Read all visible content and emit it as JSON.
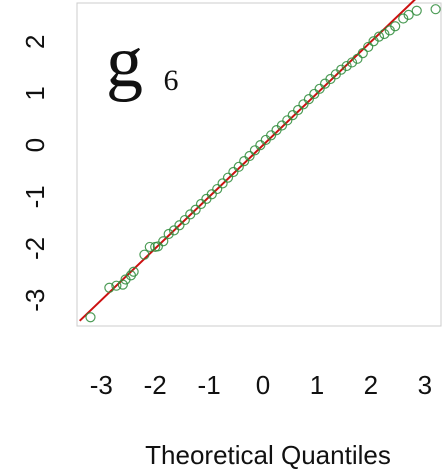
{
  "chart_data": {
    "type": "scatter",
    "panel_label": {
      "main": "g",
      "subscript": "6"
    },
    "xlabel": "Theoretical Quantiles",
    "ylabel": "",
    "xlim": [
      -3.45,
      3.3
    ],
    "ylim": [
      -3.5,
      2.75
    ],
    "x_ticks": [
      -3,
      -2,
      -1,
      0,
      1,
      2,
      3
    ],
    "x_tick_labels": [
      "-3",
      "-2",
      "-1",
      "0",
      "1",
      "2",
      "3"
    ],
    "y_ticks": [
      -3,
      -2,
      -1,
      0,
      1,
      2
    ],
    "y_tick_labels": [
      "-3",
      "-2",
      "-1",
      "0",
      "1",
      "2"
    ],
    "grid": false,
    "legend": "none",
    "colors": {
      "points": "#2e8b3a",
      "reference_line": "#cc1111",
      "frame": "#cccccc"
    },
    "reference_line": {
      "slope": 1.0,
      "intercept": 0.0
    },
    "series": [
      {
        "values": [
          {
            "x": -3.2,
            "y": -3.33
          },
          {
            "x": -2.85,
            "y": -2.76
          },
          {
            "x": -2.72,
            "y": -2.72
          },
          {
            "x": -2.6,
            "y": -2.7
          },
          {
            "x": -2.55,
            "y": -2.6
          },
          {
            "x": -2.45,
            "y": -2.52
          },
          {
            "x": -2.4,
            "y": -2.45
          },
          {
            "x": -2.2,
            "y": -2.12
          },
          {
            "x": -2.1,
            "y": -1.97
          },
          {
            "x": -2.0,
            "y": -1.97
          },
          {
            "x": -1.95,
            "y": -1.96
          },
          {
            "x": -1.85,
            "y": -1.86
          },
          {
            "x": -1.75,
            "y": -1.72
          },
          {
            "x": -1.65,
            "y": -1.65
          },
          {
            "x": -1.55,
            "y": -1.55
          },
          {
            "x": -1.45,
            "y": -1.45
          },
          {
            "x": -1.35,
            "y": -1.34
          },
          {
            "x": -1.25,
            "y": -1.25
          },
          {
            "x": -1.15,
            "y": -1.14
          },
          {
            "x": -1.05,
            "y": -1.04
          },
          {
            "x": -0.95,
            "y": -0.95
          },
          {
            "x": -0.85,
            "y": -0.85
          },
          {
            "x": -0.75,
            "y": -0.74
          },
          {
            "x": -0.65,
            "y": -0.63
          },
          {
            "x": -0.55,
            "y": -0.52
          },
          {
            "x": -0.45,
            "y": -0.42
          },
          {
            "x": -0.35,
            "y": -0.31
          },
          {
            "x": -0.25,
            "y": -0.21
          },
          {
            "x": -0.15,
            "y": -0.1
          },
          {
            "x": -0.05,
            "y": 0.0
          },
          {
            "x": 0.05,
            "y": 0.1
          },
          {
            "x": 0.15,
            "y": 0.19
          },
          {
            "x": 0.25,
            "y": 0.29
          },
          {
            "x": 0.35,
            "y": 0.38
          },
          {
            "x": 0.45,
            "y": 0.48
          },
          {
            "x": 0.55,
            "y": 0.58
          },
          {
            "x": 0.65,
            "y": 0.68
          },
          {
            "x": 0.75,
            "y": 0.79
          },
          {
            "x": 0.85,
            "y": 0.89
          },
          {
            "x": 0.95,
            "y": 0.99
          },
          {
            "x": 1.05,
            "y": 1.09
          },
          {
            "x": 1.15,
            "y": 1.19
          },
          {
            "x": 1.25,
            "y": 1.28
          },
          {
            "x": 1.35,
            "y": 1.37
          },
          {
            "x": 1.45,
            "y": 1.46
          },
          {
            "x": 1.55,
            "y": 1.53
          },
          {
            "x": 1.65,
            "y": 1.6
          },
          {
            "x": 1.75,
            "y": 1.67
          },
          {
            "x": 1.85,
            "y": 1.78
          },
          {
            "x": 1.95,
            "y": 1.9
          },
          {
            "x": 2.05,
            "y": 2.01
          },
          {
            "x": 2.15,
            "y": 2.1
          },
          {
            "x": 2.25,
            "y": 2.15
          },
          {
            "x": 2.35,
            "y": 2.22
          },
          {
            "x": 2.45,
            "y": 2.3
          },
          {
            "x": 2.6,
            "y": 2.45
          },
          {
            "x": 2.7,
            "y": 2.52
          },
          {
            "x": 2.85,
            "y": 2.6
          },
          {
            "x": 3.2,
            "y": 2.63
          }
        ]
      }
    ]
  }
}
